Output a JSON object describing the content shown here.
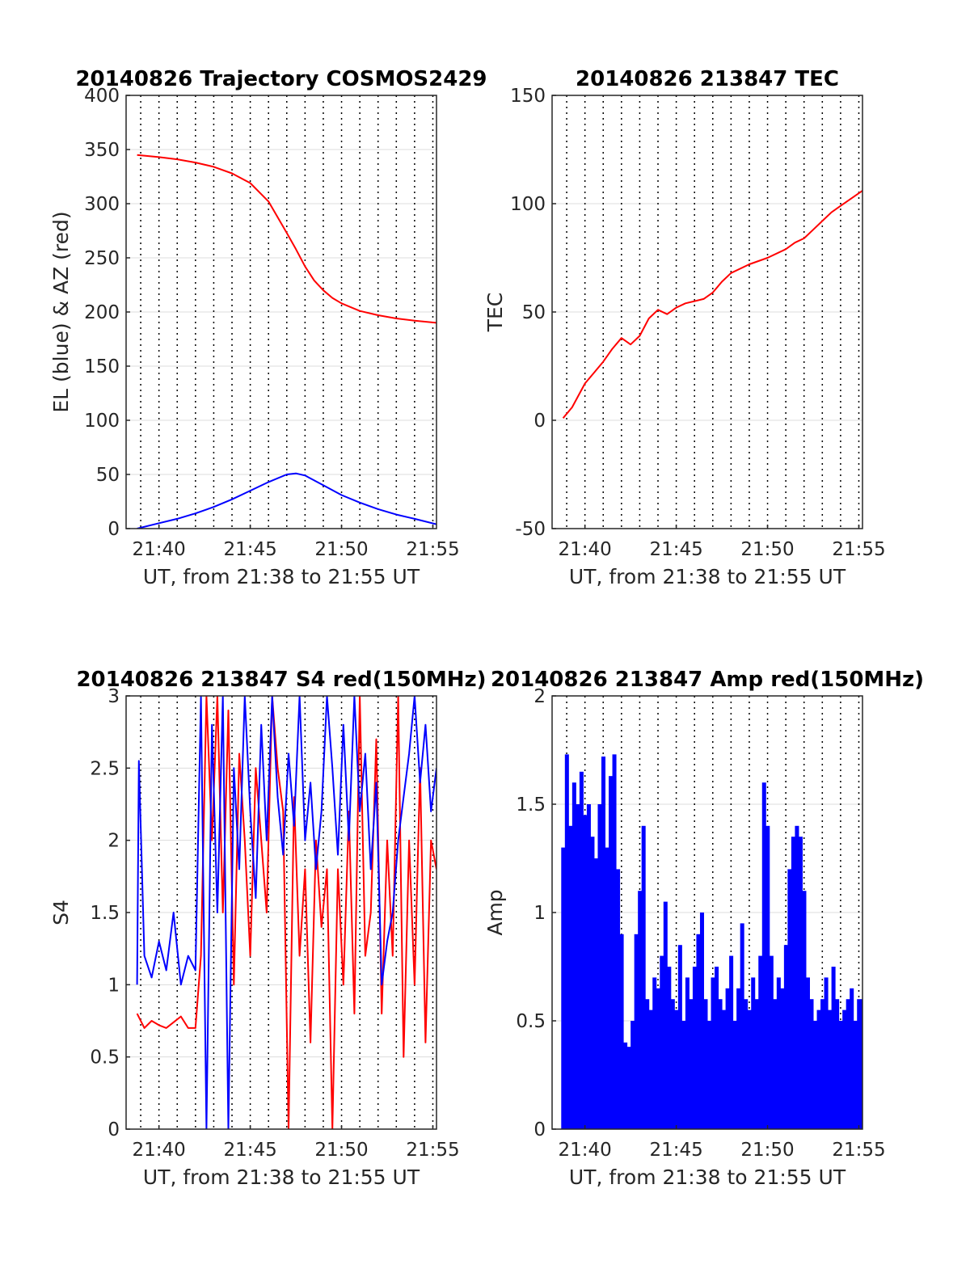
{
  "xaxis_common": {
    "ticks": [
      "21:40",
      "21:45",
      "21:50",
      "21:55"
    ],
    "tick_minutes": [
      40,
      45,
      50,
      55
    ],
    "xlim_minutes_after_21h": [
      38.2,
      55.2
    ],
    "vertical_dotted_grid_every_minutes": 1
  },
  "colors": {
    "red": "#ff0000",
    "blue": "#0000ff",
    "axis": "#262626",
    "grid": "#dcdcdc"
  },
  "chart_data": [
    {
      "type": "line",
      "title": "20140826 Trajectory COSMOS2429",
      "xlabel": "UT, from 21:38 to 21:55 UT",
      "ylabel": "EL (blue) & AZ (red)",
      "ylim": [
        0,
        400
      ],
      "yticks": [
        "0",
        "50",
        "100",
        "150",
        "200",
        "250",
        "300",
        "350",
        "400"
      ],
      "ytick_values": [
        0,
        50,
        100,
        150,
        200,
        250,
        300,
        350,
        400
      ],
      "grid": true,
      "series": [
        {
          "color": "red",
          "x": [
            38.8,
            40,
            41,
            42,
            43,
            44,
            45,
            46,
            47,
            47.5,
            48,
            48.5,
            49,
            49.5,
            50,
            51,
            52,
            53,
            54,
            55.2
          ],
          "y": [
            345,
            343,
            341,
            338,
            334,
            328,
            319,
            302,
            273,
            258,
            242,
            229,
            220,
            213,
            208,
            201,
            197,
            194,
            192,
            190
          ]
        },
        {
          "color": "blue",
          "x": [
            38.8,
            40,
            41,
            42,
            43,
            44,
            45,
            46,
            47,
            47.5,
            48,
            49,
            50,
            51,
            52,
            53,
            54,
            55.2
          ],
          "y": [
            0,
            5,
            9,
            14,
            20,
            27,
            35,
            43,
            50,
            51,
            49,
            40,
            31,
            24,
            18,
            13,
            9,
            4
          ]
        }
      ]
    },
    {
      "type": "line",
      "title": "20140826 213847 TEC",
      "xlabel": "UT, from 21:38 to 21:55 UT",
      "ylabel": "TEC",
      "ylim": [
        -50,
        150
      ],
      "yticks": [
        "-50",
        "0",
        "50",
        "100",
        "150"
      ],
      "ytick_values": [
        -50,
        0,
        50,
        100,
        150
      ],
      "grid": true,
      "series": [
        {
          "color": "red",
          "x": [
            38.8,
            39.3,
            40,
            40.5,
            41,
            41.5,
            42,
            42.5,
            43,
            43.5,
            44,
            44.5,
            45,
            45.5,
            46,
            46.5,
            47,
            47.5,
            48,
            49,
            50,
            51,
            51.5,
            52,
            52.5,
            53,
            53.5,
            54,
            55.2
          ],
          "y": [
            1,
            6,
            17,
            22,
            27,
            33,
            38,
            35,
            39,
            47,
            51,
            49,
            52,
            54,
            55,
            56,
            59,
            64,
            68,
            72,
            75,
            79,
            82,
            84,
            88,
            92,
            96,
            99,
            106
          ]
        }
      ]
    },
    {
      "type": "line",
      "title": "20140826 213847 S4 red(150MHz)",
      "xlabel": "UT, from 21:38 to 21:55 UT",
      "ylabel": "S4",
      "ylim": [
        0,
        3
      ],
      "yticks": [
        "0",
        "0.5",
        "1",
        "1.5",
        "2",
        "2.5",
        "3"
      ],
      "ytick_values": [
        0,
        0.5,
        1,
        1.5,
        2,
        2.5,
        3
      ],
      "grid": true,
      "series": [
        {
          "color": "red",
          "x": [
            38.8,
            39.2,
            39.6,
            40,
            40.4,
            40.8,
            41.2,
            41.6,
            42.0,
            42.3,
            42.6,
            42.9,
            43.2,
            43.5,
            43.8,
            44.1,
            44.4,
            44.7,
            45.0,
            45.3,
            45.6,
            45.9,
            46.2,
            46.5,
            46.8,
            47.1,
            47.4,
            47.7,
            48.0,
            48.3,
            48.6,
            48.9,
            49.2,
            49.5,
            49.8,
            50.1,
            50.4,
            50.7,
            51.0,
            51.3,
            51.6,
            51.9,
            52.2,
            52.5,
            52.8,
            53.1,
            53.4,
            53.7,
            54.0,
            54.3,
            54.6,
            54.9,
            55.2
          ],
          "y": [
            0.8,
            0.7,
            0.75,
            0.72,
            0.7,
            0.74,
            0.78,
            0.7,
            0.7,
            1.2,
            3.0,
            2.0,
            3.0,
            1.5,
            2.9,
            1.0,
            2.6,
            2.0,
            1.2,
            2.5,
            2.0,
            1.5,
            3.0,
            2.5,
            2.2,
            0.0,
            2.3,
            1.2,
            1.8,
            0.6,
            2.0,
            1.4,
            1.8,
            0.0,
            1.8,
            1.0,
            2.2,
            0.8,
            3.0,
            1.2,
            1.5,
            2.7,
            0.8,
            2.0,
            1.2,
            3.0,
            0.5,
            2.0,
            1.0,
            2.5,
            0.6,
            2.0,
            1.8
          ]
        },
        {
          "color": "blue",
          "x": [
            38.8,
            38.9,
            39.2,
            39.6,
            40,
            40.4,
            40.8,
            41.2,
            41.6,
            42.0,
            42.3,
            42.6,
            42.9,
            43.2,
            43.5,
            43.8,
            44.1,
            44.4,
            44.7,
            45.0,
            45.3,
            45.6,
            45.9,
            46.2,
            46.5,
            46.8,
            47.1,
            47.4,
            47.7,
            48.0,
            48.3,
            48.6,
            48.9,
            49.2,
            49.5,
            49.8,
            50.1,
            50.4,
            50.7,
            51.0,
            51.3,
            51.6,
            51.9,
            52.2,
            52.5,
            52.8,
            53.1,
            53.4,
            53.7,
            54.0,
            54.3,
            54.6,
            54.9,
            55.2
          ],
          "y": [
            1.0,
            2.55,
            1.2,
            1.05,
            1.3,
            1.1,
            1.5,
            1.0,
            1.2,
            1.1,
            3.0,
            0.0,
            2.8,
            1.5,
            3.0,
            0.0,
            2.5,
            1.8,
            3.0,
            2.2,
            1.6,
            2.8,
            2.0,
            3.0,
            2.3,
            1.9,
            2.6,
            2.1,
            3.0,
            2.0,
            2.4,
            1.8,
            2.2,
            3.0,
            2.5,
            1.9,
            2.8,
            2.0,
            3.0,
            2.2,
            2.6,
            1.8,
            2.4,
            1.0,
            1.3,
            1.5,
            2.0,
            2.3,
            2.6,
            3.0,
            2.4,
            2.8,
            2.2,
            2.5
          ]
        }
      ]
    },
    {
      "type": "bar",
      "title": "20140826 213847 Amp red(150MHz)",
      "xlabel": "UT, from 21:38 to 21:55 UT",
      "ylabel": "Amp",
      "ylim": [
        0,
        2
      ],
      "yticks": [
        "0",
        "0.5",
        "1",
        "1.5",
        "2"
      ],
      "ytick_values": [
        0,
        0.5,
        1,
        1.5,
        2
      ],
      "grid": true,
      "series": [
        {
          "color": "blue",
          "x": [
            38.8,
            39.0,
            39.2,
            39.4,
            39.6,
            39.8,
            40.0,
            40.2,
            40.4,
            40.6,
            40.8,
            41.0,
            41.2,
            41.4,
            41.6,
            41.8,
            42.0,
            42.2,
            42.4,
            42.6,
            42.8,
            43.0,
            43.2,
            43.4,
            43.6,
            43.8,
            44.0,
            44.2,
            44.4,
            44.6,
            44.8,
            45.0,
            45.2,
            45.4,
            45.6,
            45.8,
            46.0,
            46.2,
            46.4,
            46.6,
            46.8,
            47.0,
            47.2,
            47.4,
            47.6,
            47.8,
            48.0,
            48.2,
            48.4,
            48.6,
            48.8,
            49.0,
            49.2,
            49.4,
            49.6,
            49.8,
            50.0,
            50.2,
            50.4,
            50.6,
            50.8,
            51.0,
            51.2,
            51.4,
            51.6,
            51.8,
            52.0,
            52.2,
            52.4,
            52.6,
            52.8,
            53.0,
            53.2,
            53.4,
            53.6,
            53.8,
            54.0,
            54.2,
            54.4,
            54.6,
            54.8,
            55.0,
            55.2
          ],
          "y": [
            1.3,
            1.73,
            1.4,
            1.6,
            1.5,
            1.65,
            1.45,
            1.5,
            1.35,
            1.25,
            1.5,
            1.72,
            1.3,
            1.63,
            1.73,
            1.2,
            0.9,
            0.4,
            0.38,
            0.5,
            0.9,
            1.1,
            1.4,
            0.6,
            0.55,
            0.7,
            0.65,
            0.8,
            1.05,
            0.75,
            0.6,
            0.55,
            0.85,
            0.5,
            0.7,
            0.6,
            0.75,
            0.9,
            1.0,
            0.6,
            0.5,
            0.7,
            0.75,
            0.6,
            0.55,
            0.65,
            0.8,
            0.5,
            0.65,
            0.95,
            0.6,
            0.55,
            0.7,
            0.6,
            0.8,
            1.6,
            1.4,
            0.8,
            0.6,
            0.7,
            0.65,
            0.85,
            1.2,
            1.35,
            1.4,
            1.35,
            1.1,
            0.7,
            0.6,
            0.5,
            0.55,
            0.6,
            0.7,
            0.55,
            0.75,
            0.6,
            0.5,
            0.55,
            0.6,
            0.65,
            0.5,
            0.6,
            0.6
          ]
        }
      ]
    }
  ]
}
